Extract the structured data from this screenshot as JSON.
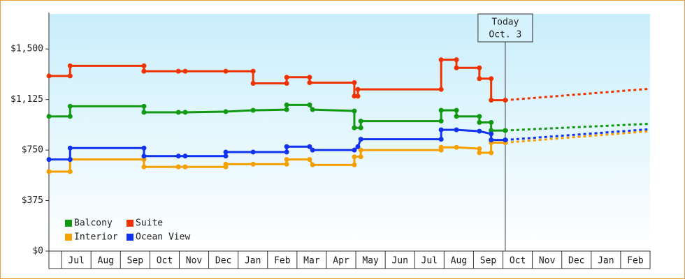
{
  "chart_data": {
    "type": "line",
    "categories": [
      "Jul",
      "Aug",
      "Sep",
      "Oct",
      "Nov",
      "Dec",
      "Jan",
      "Feb",
      "Mar",
      "Apr",
      "May",
      "Jun",
      "Jul",
      "Aug",
      "Sep",
      "Oct",
      "Nov",
      "Dec",
      "Jan",
      "Feb"
    ],
    "xlim": [
      -0.43,
      20
    ],
    "ylim": [
      0,
      1760
    ],
    "yticks": [
      {
        "value": 0,
        "label": "$0"
      },
      {
        "value": 375,
        "label": "$375"
      },
      {
        "value": 750,
        "label": "$750"
      },
      {
        "value": 1125,
        "label": "$1,125"
      },
      {
        "value": 1500,
        "label": "$1,500"
      }
    ],
    "legend": "lower left",
    "annotation": {
      "lines": [
        "Today",
        "Oct. 3"
      ],
      "x": 15.08
    },
    "series": [
      {
        "name": "Balcony",
        "color": "#119911",
        "x": [
          -0.43,
          0.29,
          0.29,
          2.8,
          2.8,
          3.97,
          4.2,
          5.58,
          6.51,
          7.65,
          7.65,
          8.43,
          8.53,
          9.95,
          9.95,
          10.17,
          10.17,
          12.9,
          12.9,
          13.42,
          13.42,
          14.2,
          14.2,
          14.6,
          14.6,
          15.08
        ],
        "values": [
          1000,
          1000,
          1075,
          1075,
          1030,
          1030,
          1030,
          1035,
          1045,
          1050,
          1085,
          1085,
          1050,
          1040,
          915,
          915,
          965,
          965,
          1045,
          1045,
          1000,
          1000,
          955,
          955,
          895,
          895
        ],
        "forecast_x": [
          15.08,
          20
        ],
        "forecast_values": [
          895,
          945
        ]
      },
      {
        "name": "Suite",
        "color": "#ee3300",
        "x": [
          -0.43,
          0.29,
          0.29,
          2.8,
          2.8,
          3.97,
          4.2,
          5.58,
          6.51,
          6.51,
          7.65,
          7.65,
          8.43,
          8.43,
          9.95,
          9.95,
          10.07,
          10.07,
          12.9,
          12.9,
          13.42,
          13.42,
          14.2,
          14.2,
          14.6,
          14.6,
          15.08
        ],
        "values": [
          1300,
          1300,
          1375,
          1375,
          1335,
          1335,
          1335,
          1335,
          1335,
          1245,
          1245,
          1290,
          1290,
          1250,
          1250,
          1150,
          1150,
          1200,
          1200,
          1420,
          1420,
          1360,
          1360,
          1280,
          1280,
          1120,
          1120
        ],
        "forecast_x": [
          15.08,
          20
        ],
        "forecast_values": [
          1120,
          1205
        ]
      },
      {
        "name": "Interior",
        "color": "#f5a000",
        "x": [
          -0.43,
          0.29,
          0.29,
          2.8,
          2.8,
          3.97,
          4.2,
          5.58,
          5.58,
          6.51,
          7.65,
          7.65,
          8.43,
          8.53,
          9.95,
          9.95,
          10.17,
          10.17,
          12.9,
          12.9,
          13.42,
          14.2,
          14.2,
          14.6,
          14.6,
          15.08
        ],
        "values": [
          590,
          590,
          680,
          680,
          625,
          625,
          625,
          625,
          645,
          645,
          645,
          680,
          680,
          640,
          640,
          700,
          700,
          750,
          750,
          770,
          770,
          760,
          730,
          730,
          805,
          805
        ],
        "forecast_x": [
          15.08,
          20
        ],
        "forecast_values": [
          805,
          890
        ]
      },
      {
        "name": "Ocean View",
        "color": "#1133ee",
        "x": [
          -0.43,
          0.29,
          0.29,
          2.8,
          2.8,
          3.97,
          4.2,
          5.58,
          5.58,
          6.51,
          7.65,
          7.65,
          8.43,
          8.53,
          9.95,
          10.07,
          10.17,
          12.9,
          12.9,
          13.42,
          14.2,
          14.6,
          14.6,
          15.08
        ],
        "values": [
          680,
          680,
          765,
          765,
          705,
          705,
          705,
          705,
          735,
          735,
          735,
          775,
          775,
          750,
          750,
          775,
          830,
          830,
          900,
          900,
          890,
          870,
          825,
          825
        ],
        "forecast_x": [
          15.08,
          20
        ],
        "forecast_values": [
          825,
          905
        ]
      }
    ]
  }
}
